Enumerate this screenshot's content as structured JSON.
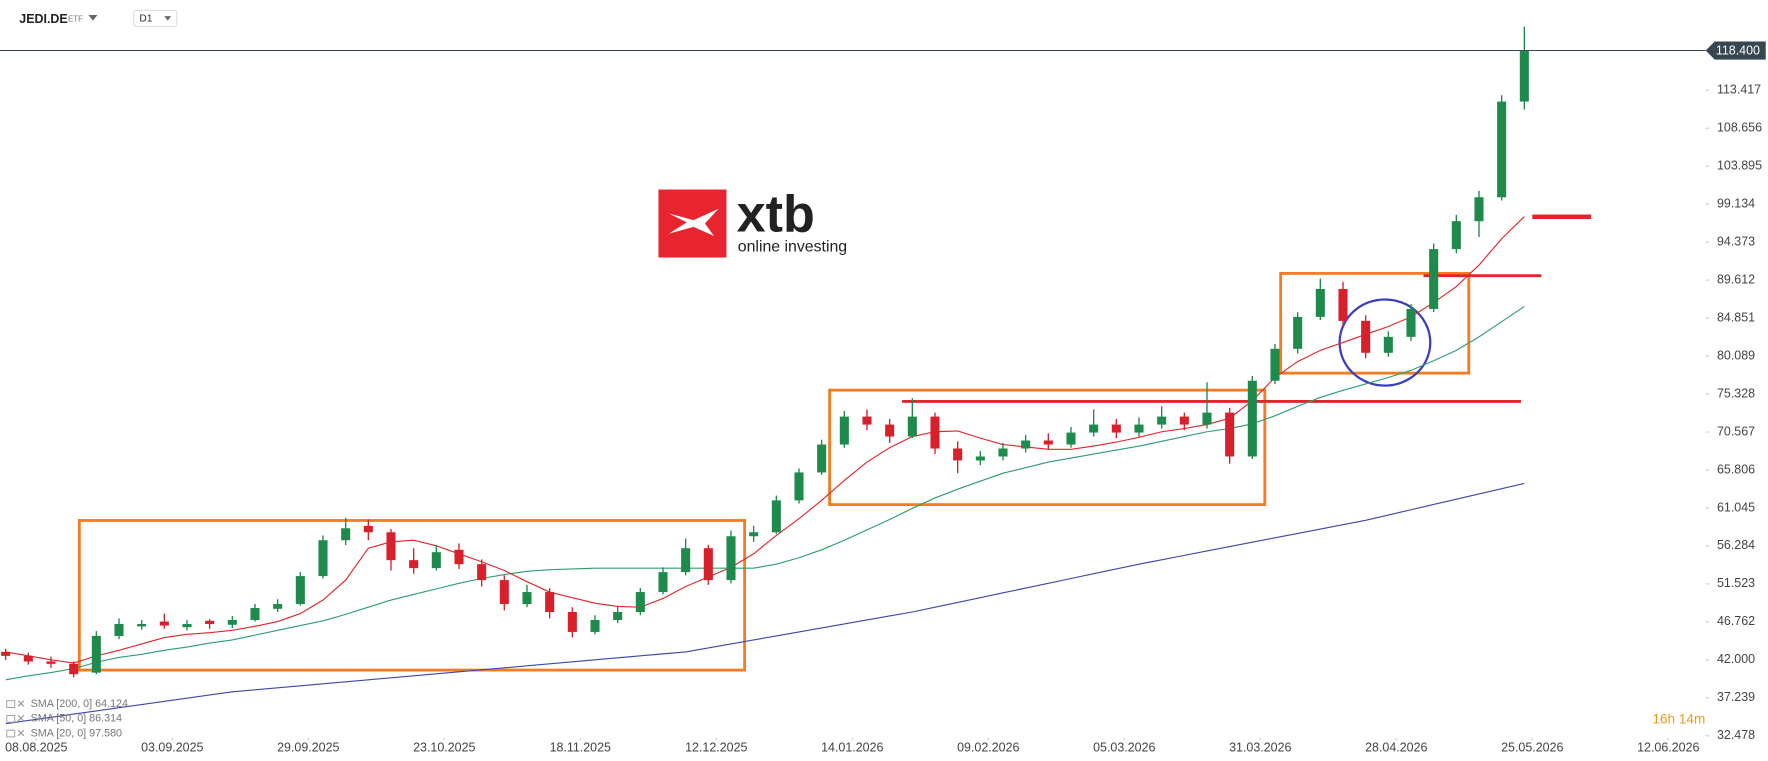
{
  "header": {
    "symbol": "JEDI.DE",
    "instrument_type": "ETF",
    "timeframe": "D1"
  },
  "watermark": {
    "brand": "xtb",
    "tagline": "online investing"
  },
  "countdown": "16h 14m",
  "chart_data": {
    "type": "candlestick",
    "up_color": "#1e8a4c",
    "down_color": "#d7202b",
    "x": [
      0,
      1,
      2,
      3,
      4,
      5,
      6,
      7,
      8,
      9,
      10,
      11,
      12,
      13,
      14,
      15,
      16,
      17,
      18,
      19,
      20,
      21,
      22,
      23,
      24,
      25,
      26,
      27,
      28,
      29,
      30,
      31,
      32,
      33,
      34,
      35,
      36,
      37,
      38,
      39,
      40,
      41,
      42,
      43,
      44,
      45,
      46,
      47,
      48,
      49,
      50,
      51,
      52,
      53,
      54,
      55,
      56,
      57,
      58,
      59,
      60,
      61,
      62,
      63,
      64,
      65,
      66,
      67
    ],
    "ohlc": {
      "open": [
        43.0,
        42.5,
        41.8,
        41.5,
        40.4,
        45.0,
        46.2,
        46.8,
        46.1,
        46.9,
        46.4,
        47.0,
        48.4,
        49.0,
        52.5,
        57.0,
        58.8,
        58.0,
        54.5,
        53.5,
        55.8,
        54.0,
        52.0,
        49.0,
        50.5,
        48.0,
        45.5,
        47.0,
        48.0,
        50.5,
        53.0,
        56.0,
        52.0,
        57.5,
        58.0,
        62.0,
        65.5,
        69.0,
        72.5,
        71.5,
        70.0,
        72.5,
        68.5,
        67.0,
        67.5,
        68.5,
        69.5,
        69.0,
        70.5,
        71.5,
        70.5,
        71.5,
        72.5,
        71.5,
        73.0,
        67.5,
        77.0,
        81.0,
        85.0,
        88.5,
        84.5,
        80.5,
        82.5,
        86.0,
        93.5,
        97.0,
        100.0,
        112.0
      ],
      "high": [
        43.4,
        42.9,
        42.4,
        41.8,
        45.6,
        47.2,
        47.0,
        47.8,
        47.0,
        47.1,
        47.5,
        49.0,
        49.6,
        53.0,
        57.6,
        59.8,
        59.6,
        58.4,
        56.0,
        56.4,
        56.6,
        54.6,
        52.6,
        51.4,
        51.0,
        48.6,
        47.6,
        48.8,
        51.0,
        53.6,
        57.2,
        56.4,
        58.2,
        58.8,
        62.6,
        66.0,
        69.6,
        73.2,
        73.4,
        72.2,
        74.8,
        73.0,
        69.4,
        68.2,
        69.2,
        70.2,
        70.4,
        71.2,
        73.4,
        72.2,
        72.4,
        73.8,
        73.0,
        76.8,
        73.6,
        77.6,
        81.6,
        85.6,
        89.8,
        89.4,
        85.2,
        83.2,
        86.6,
        94.2,
        97.8,
        100.8,
        112.8,
        121.4
      ],
      "low": [
        42.0,
        41.4,
        41.0,
        39.8,
        40.2,
        44.6,
        45.8,
        45.9,
        45.7,
        45.9,
        46.0,
        46.8,
        48.0,
        48.8,
        52.2,
        56.4,
        57.0,
        53.2,
        52.8,
        53.2,
        53.4,
        51.2,
        48.2,
        48.6,
        47.2,
        44.8,
        45.2,
        46.6,
        47.6,
        50.2,
        52.6,
        51.4,
        51.6,
        56.8,
        57.8,
        61.6,
        65.2,
        68.6,
        70.8,
        69.2,
        69.8,
        67.8,
        65.4,
        66.4,
        67.0,
        68.0,
        68.4,
        68.6,
        70.0,
        69.8,
        70.0,
        71.0,
        70.8,
        71.0,
        66.6,
        67.2,
        76.6,
        80.4,
        84.6,
        83.8,
        79.8,
        80.0,
        82.0,
        85.6,
        93.0,
        95.0,
        99.6,
        111.0
      ],
      "close": [
        42.5,
        41.8,
        41.5,
        40.2,
        45.0,
        46.5,
        46.5,
        46.3,
        46.5,
        46.5,
        47.0,
        48.5,
        49.0,
        52.5,
        57.0,
        58.5,
        58.0,
        54.5,
        53.5,
        55.5,
        54.0,
        52.0,
        49.0,
        50.5,
        48.0,
        45.5,
        47.0,
        48.0,
        50.5,
        53.0,
        56.0,
        52.0,
        57.5,
        58.0,
        62.0,
        65.5,
        69.0,
        72.5,
        71.5,
        70.0,
        72.5,
        68.5,
        67.0,
        67.5,
        68.5,
        69.5,
        69.0,
        70.5,
        71.5,
        70.5,
        71.5,
        72.5,
        71.5,
        73.0,
        67.5,
        77.0,
        81.0,
        85.0,
        88.5,
        84.5,
        80.5,
        82.5,
        86.0,
        93.5,
        97.0,
        100.0,
        112.0,
        118.4
      ]
    },
    "series": [
      {
        "name": "SMA [200, 0] 64.124",
        "color": "#4147a8",
        "values": [
          34,
          34.4,
          34.8,
          35.2,
          35.6,
          36,
          36.4,
          36.8,
          37.2,
          37.6,
          38,
          38.25,
          38.5,
          38.75,
          39,
          39.25,
          39.5,
          39.75,
          40,
          40.25,
          40.5,
          40.75,
          41,
          41.25,
          41.5,
          41.75,
          42,
          42.25,
          42.5,
          42.75,
          43,
          43.5,
          44,
          44.5,
          45,
          45.5,
          46,
          46.5,
          47,
          47.5,
          48,
          48.6,
          49.2,
          49.8,
          50.4,
          51,
          51.6,
          52.2,
          52.8,
          53.4,
          54,
          54.55,
          55.1,
          55.65,
          56.2,
          56.75,
          57.3,
          57.85,
          58.4,
          58.95,
          59.5,
          60.16,
          60.82,
          61.48,
          62.14,
          62.8,
          63.46,
          64.124
        ]
      },
      {
        "name": "SMA [50, 0] 86.314",
        "color": "#2e9e6c",
        "values": [
          39.5,
          40,
          40.4,
          40.9,
          41.7,
          42.3,
          42.7,
          43.2,
          43.6,
          44.1,
          44.5,
          45.1,
          45.7,
          46.3,
          46.9,
          47.7,
          48.6,
          49.5,
          50.2,
          50.9,
          51.6,
          52.2,
          52.7,
          53.1,
          53.3,
          53.4,
          53.5,
          53.5,
          53.5,
          53.5,
          53.5,
          53.5,
          53.5,
          53.5,
          54,
          54.8,
          55.8,
          57,
          58.3,
          59.6,
          61,
          62.3,
          63.4,
          64.4,
          65.4,
          66.1,
          66.8,
          67.3,
          67.8,
          68.3,
          68.8,
          69.4,
          70,
          70.6,
          71,
          71.6,
          72.6,
          73.8,
          74.9,
          75.8,
          76.6,
          77.4,
          78.3,
          79.5,
          80.8,
          82.5,
          84.4,
          86.314
        ]
      },
      {
        "name": "SMA [20, 0] 97.580",
        "color": "#e0262c",
        "values": [
          43,
          42.5,
          42,
          41.6,
          42.5,
          43.2,
          44,
          44.8,
          45.2,
          45.4,
          45.7,
          46.2,
          46.8,
          47.8,
          49.5,
          52,
          56,
          56.8,
          57,
          56.3,
          55.3,
          54.3,
          53.2,
          51.8,
          50.5,
          49.8,
          49.1,
          48.7,
          48.6,
          49.7,
          51.2,
          52.4,
          53.6,
          55.3,
          57.6,
          59.7,
          62,
          64.5,
          66.8,
          68.6,
          70,
          70.6,
          70.7,
          69.8,
          69,
          68.7,
          68.4,
          68.4,
          68.8,
          69.3,
          69.9,
          70.6,
          71,
          71.5,
          72.3,
          74.5,
          77.4,
          79.4,
          80.8,
          81.8,
          82.8,
          83.8,
          85,
          86.8,
          88.8,
          91.5,
          94.8,
          97.58
        ]
      }
    ],
    "price_line": {
      "value": 118.4,
      "label": "118.400"
    },
    "xlim": [
      -0.25,
      75
    ],
    "xticks": [
      {
        "value": 1.35,
        "label": "08.08.2025"
      },
      {
        "value": 7.35,
        "label": "03.09.2025"
      },
      {
        "value": 13.35,
        "label": "29.09.2025"
      },
      {
        "value": 19.35,
        "label": "23.10.2025"
      },
      {
        "value": 25.35,
        "label": "18.11.2025"
      },
      {
        "value": 31.35,
        "label": "12.12.2025"
      },
      {
        "value": 37.35,
        "label": "14.01.2026"
      },
      {
        "value": 43.35,
        "label": "09.02.2026"
      },
      {
        "value": 49.35,
        "label": "05.03.2026"
      },
      {
        "value": 55.35,
        "label": "31.03.2026"
      },
      {
        "value": 61.35,
        "label": "28.04.2026"
      },
      {
        "value": 67.35,
        "label": "25.05.2026"
      },
      {
        "value": 73.35,
        "label": "12.06.2026"
      }
    ],
    "ylim": [
      32.478,
      124.7
    ],
    "yticks": [
      32.478,
      37.239,
      {
        "value": 42,
        "label": "42.000"
      },
      46.762,
      51.523,
      56.284,
      61.045,
      65.806,
      70.567,
      75.328,
      80.089,
      84.851,
      89.612,
      94.373,
      99.134,
      103.895,
      108.656,
      113.417
    ]
  }
}
